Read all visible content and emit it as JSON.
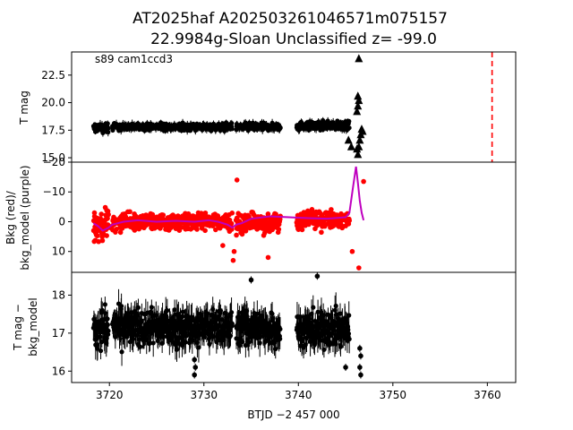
{
  "chart_data": [
    {
      "type": "scatter",
      "title_line1": "AT2025haf  A202503261046571m075157",
      "title_line2": "22.9984g-Sloan Unclassified z= -99.0",
      "annotation": "s89 cam1ccd3",
      "ylabel": "T mag",
      "xlim": [
        3716,
        3763
      ],
      "ylim": [
        24.6,
        14.6
      ],
      "y_inverted": true,
      "yticks": [
        "15.0",
        "17.5",
        "20.0",
        "22.5"
      ],
      "ytick_values": [
        15.0,
        17.5,
        20.0,
        22.5
      ],
      "marker_color": "#000000",
      "vline": {
        "x": 3760.5,
        "color": "#ff0000",
        "style": "dashed"
      },
      "segments": [
        {
          "x_start": 3718.3,
          "x_end": 3719.9,
          "y_center": 17.7,
          "y_spread": 0.6
        },
        {
          "x_start": 3720.3,
          "x_end": 3733.0,
          "y_center": 17.8,
          "y_spread": 0.45
        },
        {
          "x_start": 3733.4,
          "x_end": 3738.1,
          "y_center": 17.8,
          "y_spread": 0.5
        },
        {
          "x_start": 3739.8,
          "x_end": 3745.4,
          "y_center": 17.9,
          "y_spread": 0.55
        }
      ],
      "triangles": [
        {
          "x": 3746.2,
          "y": 15.8
        },
        {
          "x": 3746.3,
          "y": 15.3
        },
        {
          "x": 3746.4,
          "y": 16.0
        },
        {
          "x": 3746.5,
          "y": 16.6
        },
        {
          "x": 3746.6,
          "y": 17.1
        },
        {
          "x": 3746.7,
          "y": 17.6
        },
        {
          "x": 3746.8,
          "y": 17.4
        },
        {
          "x": 3746.2,
          "y": 19.2
        },
        {
          "x": 3746.3,
          "y": 19.7
        },
        {
          "x": 3746.4,
          "y": 20.2
        },
        {
          "x": 3746.3,
          "y": 20.6
        },
        {
          "x": 3746.4,
          "y": 24.0
        },
        {
          "x": 3745.6,
          "y": 16.0
        },
        {
          "x": 3745.3,
          "y": 16.6
        }
      ]
    },
    {
      "type": "scatter",
      "ylabel_line1": "Bkg (red)/",
      "ylabel_line2": "bkg_model (purple)",
      "xlim": [
        3716,
        3763
      ],
      "ylim": [
        -20,
        17
      ],
      "yticks": [
        "10",
        "0",
        "−10",
        "−20"
      ],
      "ytick_values": [
        10,
        0,
        -10,
        -20
      ],
      "series": [
        {
          "color": "#ff0000",
          "kind": "points"
        },
        {
          "color": "#bf00bf",
          "kind": "line"
        }
      ],
      "segments": [
        {
          "x_start": 3718.3,
          "x_end": 3719.9,
          "y_center": 1.5,
          "y_spread": 8.0
        },
        {
          "x_start": 3720.3,
          "x_end": 3733.0,
          "y_center": 0.0,
          "y_spread": 4.0
        },
        {
          "x_start": 3733.4,
          "x_end": 3738.1,
          "y_center": 0.5,
          "y_spread": 5.0
        },
        {
          "x_start": 3739.8,
          "x_end": 3745.4,
          "y_center": -0.5,
          "y_spread": 4.5
        }
      ],
      "model_points": [
        [
          3718.3,
          0.5
        ],
        [
          3718.8,
          1.5
        ],
        [
          3719.3,
          3.0
        ],
        [
          3719.9,
          2.0
        ],
        [
          3720.3,
          1.0
        ],
        [
          3721.5,
          0.0
        ],
        [
          3723.0,
          -0.5
        ],
        [
          3725.0,
          0.0
        ],
        [
          3727.0,
          -0.3
        ],
        [
          3729.0,
          0.0
        ],
        [
          3730.5,
          -0.5
        ],
        [
          3731.5,
          0.0
        ],
        [
          3732.5,
          1.0
        ],
        [
          3733.0,
          2.0
        ],
        [
          3733.4,
          1.0
        ],
        [
          3734.0,
          0.5
        ],
        [
          3735.0,
          -1.0
        ],
        [
          3737.0,
          -1.8
        ],
        [
          3739.0,
          -1.5
        ],
        [
          3741.0,
          -1.2
        ],
        [
          3743.0,
          -1.0
        ],
        [
          3745.0,
          -1.5
        ],
        [
          3745.4,
          -3.0
        ],
        [
          3745.8,
          -12.0
        ],
        [
          3746.1,
          -18.5
        ],
        [
          3746.3,
          -13.0
        ],
        [
          3746.5,
          -7.0
        ],
        [
          3746.7,
          -3.0
        ],
        [
          3746.9,
          -0.5
        ]
      ],
      "extra_points": [
        [
          3720.0,
          2.0
        ],
        [
          3732.0,
          8.0
        ],
        [
          3733.1,
          13.0
        ],
        [
          3733.2,
          10.0
        ],
        [
          3733.5,
          -14.0
        ],
        [
          3736.8,
          12.0
        ],
        [
          3746.4,
          15.5
        ],
        [
          3746.9,
          -13.5
        ],
        [
          3745.7,
          10.0
        ]
      ]
    },
    {
      "type": "scatter",
      "ylabel_line1": "T mag −",
      "ylabel_line2": "bkg_model",
      "xlabel": "BTJD −2 457 000",
      "xlim": [
        3716,
        3763
      ],
      "ylim": [
        18.6,
        15.7
      ],
      "y_inverted": true,
      "yticks": [
        "16",
        "17",
        "18"
      ],
      "ytick_values": [
        16,
        17,
        18
      ],
      "xticks": [
        "3720",
        "3730",
        "3740",
        "3750",
        "3760"
      ],
      "xtick_values": [
        3720,
        3730,
        3740,
        3750,
        3760
      ],
      "marker_color": "#000000",
      "segments": [
        {
          "x_start": 3718.3,
          "x_end": 3719.9,
          "y_center": 17.15,
          "y_spread": 0.75
        },
        {
          "x_start": 3720.3,
          "x_end": 3733.0,
          "y_center": 17.15,
          "y_spread": 0.7
        },
        {
          "x_start": 3733.4,
          "x_end": 3738.1,
          "y_center": 17.15,
          "y_spread": 0.7
        },
        {
          "x_start": 3739.8,
          "x_end": 3745.4,
          "y_center": 17.1,
          "y_spread": 0.7
        }
      ],
      "extra_points": [
        [
          3729.0,
          15.9
        ],
        [
          3729.1,
          16.1
        ],
        [
          3729.0,
          16.3
        ],
        [
          3745.0,
          16.1
        ],
        [
          3746.6,
          15.9
        ],
        [
          3746.5,
          16.1
        ],
        [
          3746.6,
          16.4
        ],
        [
          3746.5,
          16.6
        ],
        [
          3742.0,
          18.5
        ],
        [
          3735.0,
          18.4
        ]
      ]
    }
  ]
}
